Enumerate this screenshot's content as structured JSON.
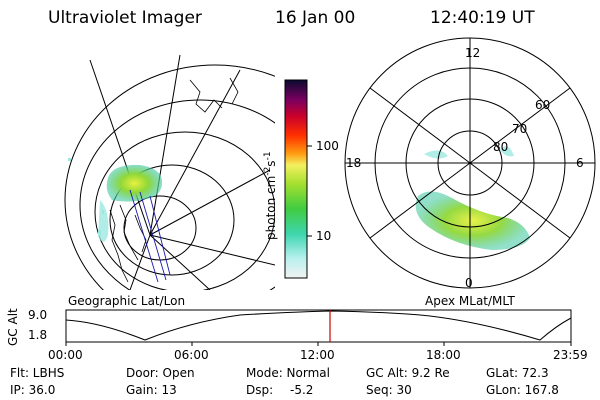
{
  "header": {
    "instrument": "Ultraviolet Imager",
    "date": "16 Jan 00",
    "time": "12:40:19 UT"
  },
  "colorbar": {
    "unit_label": "photon cm",
    "unit_exp1": "-2",
    "unit_s": "s",
    "unit_exp2": "-1",
    "ticks": [
      "100",
      "10"
    ]
  },
  "left_panel": {
    "caption": "Geographic Lat/Lon"
  },
  "right_panel": {
    "caption": "Apex MLat/MLT",
    "mlt_labels": {
      "top": "12",
      "left": "18",
      "right": "6",
      "bottom": "0"
    },
    "lat_labels": [
      "60",
      "70",
      "80"
    ]
  },
  "altitude_plot": {
    "ylabel": "GC Alt",
    "ytick_top": "9.0",
    "ytick_bottom": "1.8",
    "xticks": [
      "00:00",
      "06:00",
      "12:00",
      "18:00",
      "23:59"
    ],
    "marker_color": "#d00000"
  },
  "info": {
    "filter": "Flt: LBHS",
    "ip": "IP: 36.0",
    "door": "Door: Open",
    "gain": "Gain: 13",
    "mode": "Mode: Normal",
    "dsp_label": "Dsp:",
    "dsp_value": "-5.2",
    "gcalt": "GC Alt: 9.2 Re",
    "seq": "Seq: 30",
    "glat": "GLat: 72.3",
    "glon": "GLon: 167.8"
  }
}
